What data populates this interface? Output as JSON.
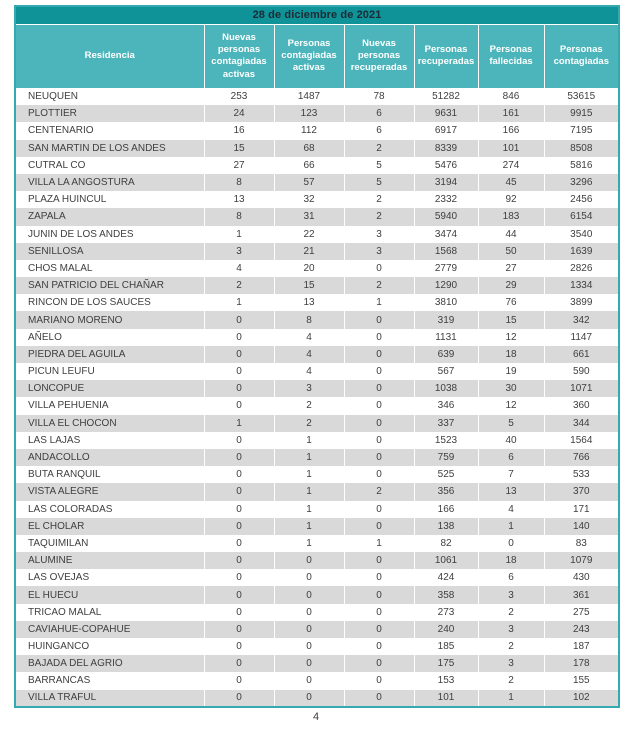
{
  "colors": {
    "title_bar": "#0f9298",
    "header_bg": "#4bb5bb",
    "row_alt": "#d9d9d9",
    "table_border": "#35a9b0",
    "title_text": "#1b2b33",
    "cell_text": "#3f3f3f"
  },
  "page": {
    "number": "4"
  },
  "table": {
    "title": "28 de diciembre de 2021",
    "columns": [
      "Residencia",
      "Nuevas personas contagiadas activas",
      "Personas contagiadas activas",
      "Nuevas personas recuperadas",
      "Personas recuperadas",
      "Personas fallecidas",
      "Personas contagiadas"
    ],
    "rows": [
      [
        "NEUQUEN",
        253,
        1487,
        78,
        51282,
        846,
        53615
      ],
      [
        "PLOTTIER",
        24,
        123,
        6,
        9631,
        161,
        9915
      ],
      [
        "CENTENARIO",
        16,
        112,
        6,
        6917,
        166,
        7195
      ],
      [
        "SAN MARTIN DE LOS ANDES",
        15,
        68,
        2,
        8339,
        101,
        8508
      ],
      [
        "CUTRAL CO",
        27,
        66,
        5,
        5476,
        274,
        5816
      ],
      [
        "VILLA LA ANGOSTURA",
        8,
        57,
        5,
        3194,
        45,
        3296
      ],
      [
        "PLAZA HUINCUL",
        13,
        32,
        2,
        2332,
        92,
        2456
      ],
      [
        "ZAPALA",
        8,
        31,
        2,
        5940,
        183,
        6154
      ],
      [
        "JUNIN DE LOS ANDES",
        1,
        22,
        3,
        3474,
        44,
        3540
      ],
      [
        "SENILLOSA",
        3,
        21,
        3,
        1568,
        50,
        1639
      ],
      [
        "CHOS MALAL",
        4,
        20,
        0,
        2779,
        27,
        2826
      ],
      [
        "SAN PATRICIO DEL CHAÑAR",
        2,
        15,
        2,
        1290,
        29,
        1334
      ],
      [
        "RINCON DE LOS SAUCES",
        1,
        13,
        1,
        3810,
        76,
        3899
      ],
      [
        "MARIANO MORENO",
        0,
        8,
        0,
        319,
        15,
        342
      ],
      [
        "AÑELO",
        0,
        4,
        0,
        1131,
        12,
        1147
      ],
      [
        "PIEDRA DEL AGUILA",
        0,
        4,
        0,
        639,
        18,
        661
      ],
      [
        "PICUN LEUFU",
        0,
        4,
        0,
        567,
        19,
        590
      ],
      [
        "LONCOPUE",
        0,
        3,
        0,
        1038,
        30,
        1071
      ],
      [
        "VILLA PEHUENIA",
        0,
        2,
        0,
        346,
        12,
        360
      ],
      [
        "VILLA EL CHOCON",
        1,
        2,
        0,
        337,
        5,
        344
      ],
      [
        "LAS LAJAS",
        0,
        1,
        0,
        1523,
        40,
        1564
      ],
      [
        "ANDACOLLO",
        0,
        1,
        0,
        759,
        6,
        766
      ],
      [
        "BUTA RANQUIL",
        0,
        1,
        0,
        525,
        7,
        533
      ],
      [
        "VISTA ALEGRE",
        0,
        1,
        2,
        356,
        13,
        370
      ],
      [
        "LAS COLORADAS",
        0,
        1,
        0,
        166,
        4,
        171
      ],
      [
        "EL CHOLAR",
        0,
        1,
        0,
        138,
        1,
        140
      ],
      [
        "TAQUIMILAN",
        0,
        1,
        1,
        82,
        0,
        83
      ],
      [
        "ALUMINE",
        0,
        0,
        0,
        1061,
        18,
        1079
      ],
      [
        "LAS OVEJAS",
        0,
        0,
        0,
        424,
        6,
        430
      ],
      [
        "EL HUECU",
        0,
        0,
        0,
        358,
        3,
        361
      ],
      [
        "TRICAO MALAL",
        0,
        0,
        0,
        273,
        2,
        275
      ],
      [
        "CAVIAHUE-COPAHUE",
        0,
        0,
        0,
        240,
        3,
        243
      ],
      [
        "HUINGANCO",
        0,
        0,
        0,
        185,
        2,
        187
      ],
      [
        "BAJADA DEL AGRIO",
        0,
        0,
        0,
        175,
        3,
        178
      ],
      [
        "BARRANCAS",
        0,
        0,
        0,
        153,
        2,
        155
      ],
      [
        "VILLA TRAFUL",
        0,
        0,
        0,
        101,
        1,
        102
      ]
    ]
  }
}
